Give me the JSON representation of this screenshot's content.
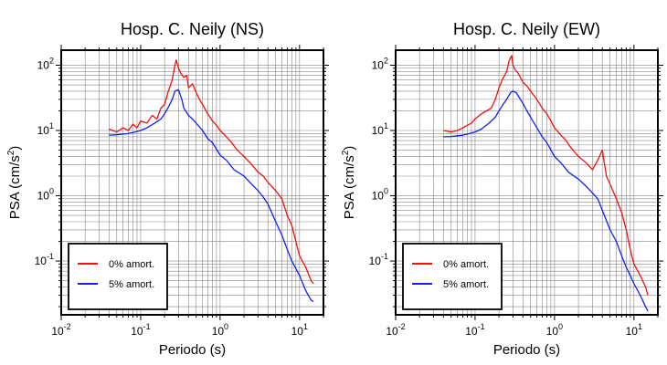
{
  "chart_data": [
    {
      "type": "line",
      "title": "Hosp. C. Neily (NS)",
      "xlabel": "Periodo (s)",
      "ylabel_main": "PSA (cm/s",
      "ylabel_sup": "2",
      "ylabel_end": ")",
      "xscale": "log",
      "yscale": "log",
      "xlim": [
        0.01,
        20
      ],
      "ylim": [
        0.015,
        170
      ],
      "grid": true,
      "legend_position": "bottom-left",
      "x_ticks": [
        {
          "base": "10",
          "exp": "-2"
        },
        {
          "base": "10",
          "exp": "-1"
        },
        {
          "base": "10",
          "exp": "0"
        },
        {
          "base": "10",
          "exp": "1"
        }
      ],
      "y_ticks": [
        {
          "base": "10",
          "exp": "-1"
        },
        {
          "base": "10",
          "exp": "0"
        },
        {
          "base": "10",
          "exp": "1"
        },
        {
          "base": "10",
          "exp": "2"
        }
      ],
      "series": [
        {
          "name": "0% amort.",
          "color": "#ee1111",
          "x": [
            0.04,
            0.05,
            0.06,
            0.07,
            0.08,
            0.09,
            0.1,
            0.12,
            0.14,
            0.16,
            0.18,
            0.2,
            0.22,
            0.25,
            0.27,
            0.28,
            0.3,
            0.32,
            0.35,
            0.38,
            0.4,
            0.45,
            0.5,
            0.55,
            0.6,
            0.7,
            0.8,
            0.9,
            1.0,
            1.2,
            1.4,
            1.6,
            1.8,
            2.0,
            2.5,
            3.0,
            3.5,
            4.0,
            5.0,
            6.0,
            7.0,
            8.0,
            9.0,
            10.0,
            12.0,
            14.0,
            15.0
          ],
          "y": [
            10.5,
            9.5,
            11,
            10,
            12.5,
            11,
            14,
            13,
            17,
            15,
            22,
            25,
            38,
            60,
            100,
            120,
            90,
            75,
            65,
            70,
            45,
            52,
            38,
            30,
            25,
            18,
            14,
            12,
            10,
            8,
            6.5,
            5.2,
            4.5,
            4.0,
            3.0,
            2.3,
            2.0,
            1.6,
            1.2,
            0.9,
            0.5,
            0.35,
            0.2,
            0.12,
            0.08,
            0.05,
            0.045
          ]
        },
        {
          "name": "5% amort.",
          "color": "#1122ee",
          "x": [
            0.04,
            0.05,
            0.06,
            0.07,
            0.08,
            0.1,
            0.12,
            0.15,
            0.18,
            0.2,
            0.22,
            0.25,
            0.27,
            0.3,
            0.33,
            0.35,
            0.4,
            0.45,
            0.5,
            0.6,
            0.7,
            0.8,
            1.0,
            1.2,
            1.5,
            2.0,
            2.5,
            3.0,
            3.5,
            4.0,
            5.0,
            6.0,
            7.0,
            8.0,
            10.0,
            12.0,
            14.0,
            15.0
          ],
          "y": [
            8.5,
            8.6,
            8.8,
            9.0,
            9.3,
            10,
            11,
            13,
            15,
            18,
            22,
            30,
            40,
            42,
            30,
            22,
            17,
            15,
            13,
            10,
            7.5,
            6.5,
            4.2,
            3.5,
            2.5,
            2.0,
            1.5,
            1.2,
            0.95,
            0.75,
            0.4,
            0.25,
            0.15,
            0.1,
            0.06,
            0.035,
            0.025,
            0.024
          ]
        }
      ]
    },
    {
      "type": "line",
      "title": "Hosp. C. Neily (EW)",
      "xlabel": "Periodo (s)",
      "ylabel_main": "PSA (cm/s",
      "ylabel_sup": "2",
      "ylabel_end": ")",
      "xscale": "log",
      "yscale": "log",
      "xlim": [
        0.01,
        20
      ],
      "ylim": [
        0.015,
        170
      ],
      "grid": true,
      "legend_position": "bottom-left",
      "x_ticks": [
        {
          "base": "10",
          "exp": "-2"
        },
        {
          "base": "10",
          "exp": "-1"
        },
        {
          "base": "10",
          "exp": "0"
        },
        {
          "base": "10",
          "exp": "1"
        }
      ],
      "y_ticks": [
        {
          "base": "10",
          "exp": "-1"
        },
        {
          "base": "10",
          "exp": "0"
        },
        {
          "base": "10",
          "exp": "1"
        },
        {
          "base": "10",
          "exp": "2"
        }
      ],
      "series": [
        {
          "name": "0% amort.",
          "color": "#ee1111",
          "x": [
            0.04,
            0.05,
            0.06,
            0.07,
            0.08,
            0.09,
            0.1,
            0.12,
            0.14,
            0.16,
            0.18,
            0.2,
            0.22,
            0.25,
            0.27,
            0.29,
            0.3,
            0.32,
            0.35,
            0.4,
            0.45,
            0.5,
            0.6,
            0.7,
            0.8,
            0.9,
            1.0,
            1.2,
            1.4,
            1.6,
            2.0,
            2.5,
            3.0,
            3.5,
            4.0,
            4.5,
            5.0,
            6.0,
            7.0,
            8.0,
            9.0,
            10.0,
            12.0,
            14.0,
            15.0
          ],
          "y": [
            10,
            9.5,
            10,
            11,
            12,
            13,
            15,
            18,
            20,
            22,
            30,
            45,
            60,
            80,
            120,
            140,
            100,
            85,
            75,
            55,
            48,
            40,
            30,
            22,
            18,
            14,
            11,
            8.5,
            7.0,
            5.5,
            4.0,
            3.2,
            2.5,
            3.5,
            5.0,
            2.0,
            1.5,
            0.9,
            0.55,
            0.3,
            0.15,
            0.09,
            0.06,
            0.04,
            0.03
          ]
        },
        {
          "name": "5% amort.",
          "color": "#1122ee",
          "x": [
            0.04,
            0.05,
            0.06,
            0.07,
            0.08,
            0.1,
            0.12,
            0.15,
            0.18,
            0.2,
            0.22,
            0.25,
            0.28,
            0.3,
            0.33,
            0.36,
            0.4,
            0.45,
            0.5,
            0.6,
            0.7,
            0.8,
            1.0,
            1.2,
            1.5,
            2.0,
            2.5,
            3.0,
            3.5,
            4.0,
            5.0,
            6.0,
            7.0,
            8.0,
            9.0,
            10.0,
            12.0,
            14.0,
            15.0
          ],
          "y": [
            8.0,
            8.1,
            8.3,
            8.5,
            8.8,
            9.5,
            10.5,
            13,
            16,
            20,
            24,
            30,
            38,
            40,
            38,
            32,
            26,
            20,
            16,
            11,
            8,
            6.5,
            4.0,
            3.2,
            2.3,
            1.8,
            1.4,
            1.1,
            0.9,
            0.6,
            0.3,
            0.2,
            0.12,
            0.08,
            0.06,
            0.045,
            0.03,
            0.02,
            0.017
          ]
        }
      ]
    }
  ]
}
